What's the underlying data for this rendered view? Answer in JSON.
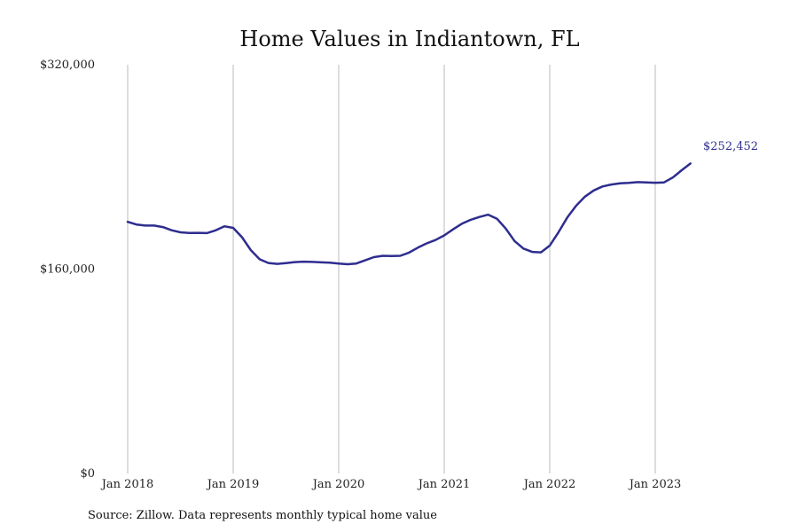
{
  "chart_data": {
    "type": "line",
    "title": "Home Values in Indiantown, FL",
    "xlabel": "",
    "ylabel": "",
    "ylim": [
      0,
      320000
    ],
    "y_ticks": [
      {
        "value": 0,
        "label": "$0"
      },
      {
        "value": 160000,
        "label": "$160,000"
      },
      {
        "value": 320000,
        "label": "$320,000"
      }
    ],
    "x_ticks": [
      {
        "value": "2018-01",
        "label": "Jan 2018"
      },
      {
        "value": "2019-01",
        "label": "Jan 2019"
      },
      {
        "value": "2020-01",
        "label": "Jan 2020"
      },
      {
        "value": "2021-01",
        "label": "Jan 2021"
      },
      {
        "value": "2022-01",
        "label": "Jan 2022"
      },
      {
        "value": "2023-01",
        "label": "Jan 2023"
      }
    ],
    "x_range": [
      "2018-01",
      "2024-01"
    ],
    "grid": "vertical at year ticks",
    "line_color": "#2e2d8f",
    "grid_color": "#bbbbbb",
    "series": [
      {
        "x": [
          "2018-01",
          "2018-02",
          "2018-03",
          "2018-04",
          "2018-05",
          "2018-06",
          "2018-07",
          "2018-08",
          "2018-09",
          "2018-10",
          "2018-11",
          "2018-12",
          "2019-01",
          "2019-02",
          "2019-03",
          "2019-04",
          "2019-05",
          "2019-06",
          "2019-07",
          "2019-08",
          "2019-09",
          "2019-10",
          "2019-11",
          "2019-12",
          "2020-01",
          "2020-02",
          "2020-03",
          "2020-04",
          "2020-05",
          "2020-06",
          "2020-07",
          "2020-08",
          "2020-09",
          "2020-10",
          "2020-11",
          "2020-12",
          "2021-01",
          "2021-02",
          "2021-03",
          "2021-04",
          "2021-05",
          "2021-06",
          "2021-07",
          "2021-08",
          "2021-09",
          "2021-10",
          "2021-11",
          "2021-12",
          "2022-01",
          "2022-02",
          "2022-03",
          "2022-04",
          "2022-05",
          "2022-06",
          "2022-07",
          "2022-08",
          "2022-09",
          "2022-10",
          "2022-11",
          "2022-12",
          "2023-01",
          "2023-02",
          "2023-03",
          "2023-04",
          "2023-05"
        ],
        "values": [
          197000,
          194900,
          194100,
          194100,
          192900,
          190400,
          188800,
          188300,
          188400,
          188200,
          190300,
          193500,
          192300,
          185000,
          174900,
          167700,
          164800,
          164100,
          164700,
          165500,
          165800,
          165600,
          165300,
          165100,
          164300,
          163800,
          164400,
          166900,
          169400,
          170400,
          170200,
          170400,
          172900,
          176800,
          180100,
          182800,
          186400,
          191100,
          195500,
          198600,
          200800,
          202600,
          199400,
          191700,
          182000,
          176100,
          173500,
          173100,
          178400,
          188900,
          200400,
          209600,
          216700,
          221600,
          224700,
          226200,
          227100,
          227500,
          228100,
          227900,
          227600,
          227900,
          231700,
          237400,
          242700
        ]
      }
    ],
    "end_label": "$252,452",
    "source": "Source: Zillow. Data represents monthly typical home value"
  }
}
